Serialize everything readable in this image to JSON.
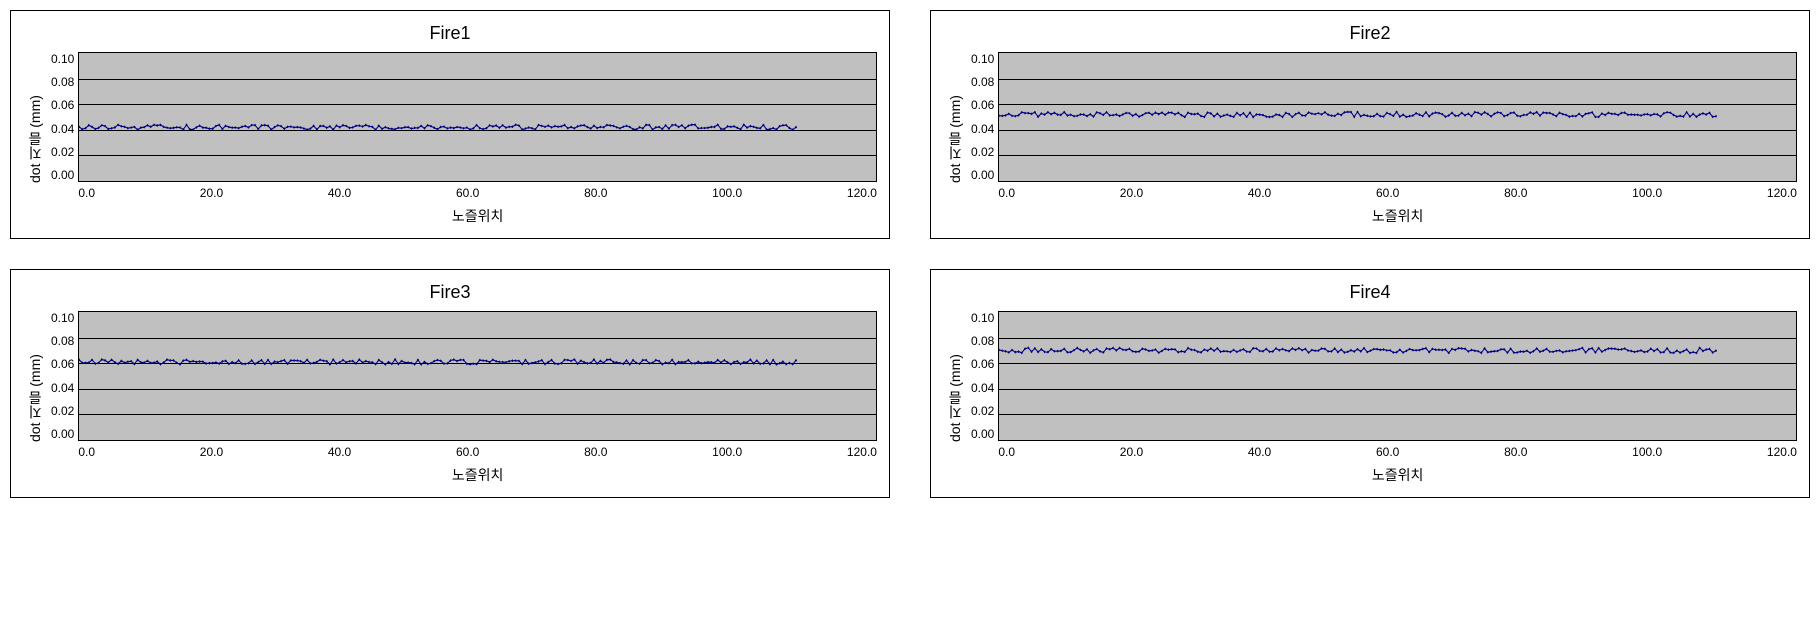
{
  "layout": {
    "rows": 2,
    "cols": 2,
    "panel_border_color": "#000000",
    "background_color": "#ffffff"
  },
  "common": {
    "ylabel": "dot 지름 (mm)",
    "xlabel": "노즐위치",
    "ylim": [
      0.0,
      0.1
    ],
    "ytick_step": 0.02,
    "yticks": [
      "0.10",
      "0.08",
      "0.06",
      "0.04",
      "0.02",
      "0.00"
    ],
    "xlim": [
      0.0,
      120.0
    ],
    "xtick_step": 20.0,
    "xticks": [
      "0.0",
      "20.0",
      "40.0",
      "60.0",
      "80.0",
      "100.0",
      "120.0"
    ],
    "plot_bg_color": "#c0c0c0",
    "grid_color": "#000000",
    "axis_color": "#000000",
    "series_color": "#000080",
    "series_marker": "diamond",
    "series_marker_size": 3,
    "title_fontsize": 18,
    "label_fontsize": 14,
    "tick_fontsize": 12,
    "data_x_max": 108.0,
    "noise_amplitude": 0.002
  },
  "charts": [
    {
      "title": "Fire1",
      "mean_value": 0.042
    },
    {
      "title": "Fire2",
      "mean_value": 0.052
    },
    {
      "title": "Fire3",
      "mean_value": 0.061
    },
    {
      "title": "Fire4",
      "mean_value": 0.07
    }
  ]
}
